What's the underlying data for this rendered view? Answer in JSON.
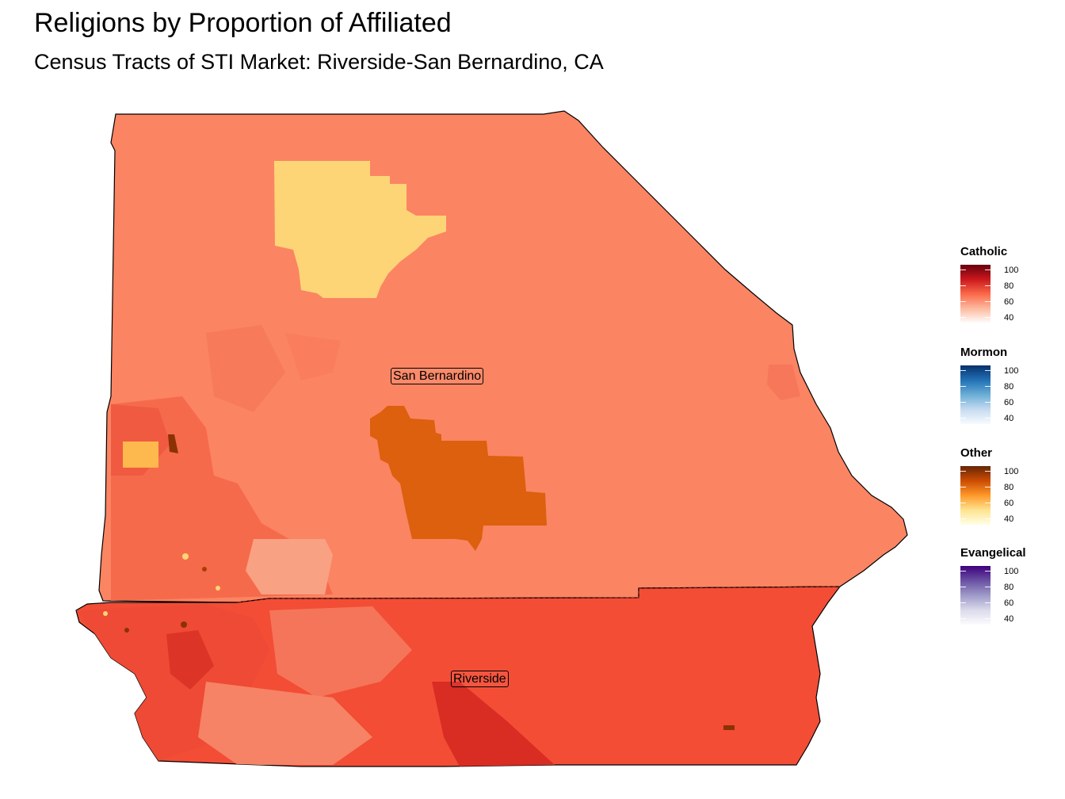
{
  "title": "Religions by Proportion of Affiliated",
  "subtitle": "Census Tracts of STI Market: Riverside-San Bernardino, CA",
  "map_labels": {
    "san_bernardino": "San Bernardino",
    "riverside": "Riverside"
  },
  "legends": [
    {
      "title": "Catholic",
      "ticks": [
        "100",
        "80",
        "60",
        "40"
      ],
      "colors": [
        "#ffffff",
        "#fcbba1",
        "#fb6a4a",
        "#cb181d",
        "#67000d"
      ]
    },
    {
      "title": "Mormon",
      "ticks": [
        "100",
        "80",
        "60",
        "40"
      ],
      "colors": [
        "#f7fbff",
        "#c6dbef",
        "#6baed6",
        "#2171b5",
        "#08306b"
      ]
    },
    {
      "title": "Other",
      "ticks": [
        "100",
        "80",
        "60",
        "40"
      ],
      "colors": [
        "#ffffe5",
        "#fee391",
        "#fe9929",
        "#cc4c02",
        "#662506"
      ]
    },
    {
      "title": "Evangelical",
      "ticks": [
        "100",
        "80",
        "60",
        "40"
      ],
      "colors": [
        "#fcfbfd",
        "#dadaeb",
        "#9e9ac8",
        "#6a51a3",
        "#3f007d"
      ]
    }
  ],
  "region_colors": {
    "san_bernardino_base": "#fb8463",
    "riverside_base": "#f34d36",
    "other_low": "#fed576",
    "other_high": "#dc600d"
  }
}
